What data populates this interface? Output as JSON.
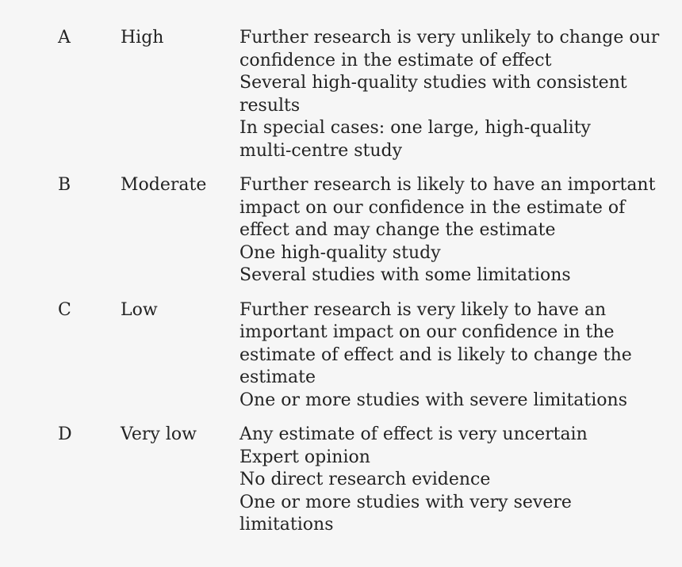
{
  "colors": {
    "background": "#f6f6f6",
    "text": "#232323"
  },
  "table": {
    "rows": [
      {
        "grade": "A",
        "quality": "High",
        "details": [
          [
            "Further research is very unlikely to change our",
            "confidence in the estimate of effect"
          ],
          [
            "Several high-quality studies with consistent",
            "results"
          ],
          [
            "In special cases: one large, high-quality",
            "multi-centre study"
          ]
        ]
      },
      {
        "grade": "B",
        "quality": "Moderate",
        "details": [
          [
            "Further research is likely to have an important",
            "impact on our confidence in the estimate of",
            "effect and may change the estimate"
          ],
          [
            "One high-quality study"
          ],
          [
            "Several studies with some limitations"
          ]
        ]
      },
      {
        "grade": "C",
        "quality": "Low",
        "details": [
          [
            "Further research is very likely to have an",
            "important impact on our confidence in the",
            "estimate of effect and is likely to change the",
            "estimate"
          ],
          [
            "One or more studies with severe limitations"
          ]
        ]
      },
      {
        "grade": "D",
        "quality": "Very low",
        "details": [
          [
            "Any estimate of effect is very uncertain"
          ],
          [
            "Expert opinion"
          ],
          [
            "No direct research evidence"
          ],
          [
            "One or more studies with very severe",
            "limitations"
          ]
        ]
      }
    ]
  }
}
